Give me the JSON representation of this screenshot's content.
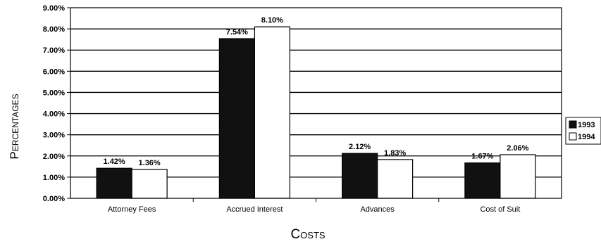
{
  "chart_data": {
    "type": "bar",
    "categories": [
      "Attorney Fees",
      "Accrued Interest",
      "Advances",
      "Cost of Suit"
    ],
    "series": [
      {
        "name": "1993",
        "values": [
          1.42,
          7.54,
          2.12,
          1.67
        ],
        "labels": [
          "1.42%",
          "7.54%",
          "2.12%",
          "1.67%"
        ],
        "color": "#111111"
      },
      {
        "name": "1994",
        "values": [
          1.36,
          8.1,
          1.83,
          2.06
        ],
        "labels": [
          "1.36%",
          "8.10%",
          "1.83%",
          "2.06%"
        ],
        "color": "#ffffff"
      }
    ],
    "title": "",
    "xlabel": "Costs",
    "ylabel": "Percentages",
    "ylim": [
      0,
      9
    ],
    "yticks": [
      "0.00%",
      "1.00%",
      "2.00%",
      "3.00%",
      "4.00%",
      "5.00%",
      "6.00%",
      "7.00%",
      "8.00%",
      "9.00%"
    ],
    "grid": true,
    "legend_position": "right"
  }
}
